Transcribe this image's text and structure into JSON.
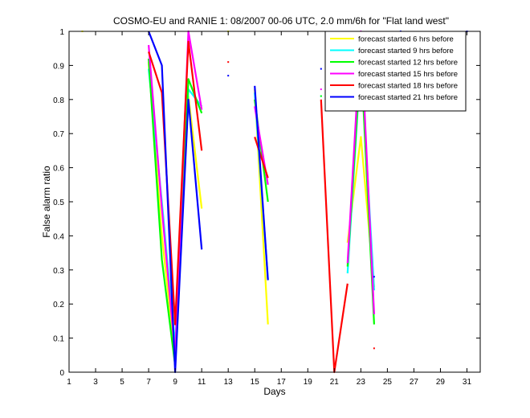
{
  "chart_data": {
    "type": "line",
    "title": "COSMO-EU and RANIE 1: 08/2007 00-06 UTC, 2.0 mm/6h for \"Flat land west\"",
    "xlabel": "Days",
    "ylabel": "False alarm ratio",
    "xlim": [
      1,
      32
    ],
    "ylim": [
      0,
      1
    ],
    "xticks": [
      1,
      3,
      5,
      7,
      9,
      11,
      13,
      15,
      17,
      19,
      21,
      23,
      25,
      27,
      29,
      31
    ],
    "yticks": [
      0,
      0.1,
      0.2,
      0.3,
      0.4,
      0.5,
      0.6,
      0.7,
      0.8,
      0.9,
      1
    ],
    "grid": false,
    "legend_position": "top-right",
    "series": [
      {
        "name": "forecast started 6 hrs before",
        "color": "#ffff00",
        "segments": [
          [
            [
              7,
              0.91
            ],
            [
              8,
              0.4
            ],
            [
              9,
              0.04
            ],
            [
              10,
              0.81
            ],
            [
              11,
              0.48
            ]
          ],
          [
            [
              15,
              0.83
            ],
            [
              16,
              0.14
            ]
          ],
          [
            [
              22,
              0.38
            ],
            [
              23,
              0.69
            ],
            [
              24,
              0.25
            ]
          ]
        ],
        "points": [
          [
            2,
            1.0
          ],
          [
            13,
            1.0
          ],
          [
            27,
            0.98
          ]
        ]
      },
      {
        "name": "forecast started 9 hrs before",
        "color": "#00ffff",
        "segments": [
          [
            [
              7,
              0.89
            ],
            [
              8,
              0.5
            ],
            [
              9,
              0.08
            ],
            [
              10,
              0.83
            ],
            [
              11,
              0.78
            ]
          ],
          [
            [
              15,
              0.82
            ],
            [
              16,
              0.27
            ]
          ],
          [
            [
              22,
              0.29
            ],
            [
              23,
              0.92
            ],
            [
              24,
              0.24
            ]
          ]
        ],
        "points": [
          [
            20,
            0.81
          ]
        ]
      },
      {
        "name": "forecast started 12 hrs before",
        "color": "#00ff00",
        "segments": [
          [
            [
              7,
              0.92
            ],
            [
              8,
              0.33
            ],
            [
              9,
              0.02
            ],
            [
              10,
              0.86
            ],
            [
              11,
              0.76
            ]
          ],
          [
            [
              15,
              0.8
            ],
            [
              16,
              0.5
            ]
          ],
          [
            [
              22,
              0.31
            ],
            [
              23,
              0.93
            ],
            [
              24,
              0.14
            ]
          ]
        ],
        "points": [
          [
            20,
            0.81
          ]
        ]
      },
      {
        "name": "forecast started 15 hrs before",
        "color": "#ff00ff",
        "segments": [
          [
            [
              7,
              0.96
            ],
            [
              8,
              0.48
            ],
            [
              9,
              0.05
            ],
            [
              10,
              1.0
            ],
            [
              11,
              0.77
            ]
          ],
          [
            [
              15,
              0.78
            ],
            [
              16,
              0.55
            ]
          ],
          [
            [
              22,
              0.32
            ],
            [
              23,
              1.0
            ],
            [
              24,
              0.17
            ]
          ]
        ],
        "points": [
          [
            20,
            0.83
          ]
        ]
      },
      {
        "name": "forecast started 18 hrs before",
        "color": "#ff0000",
        "segments": [
          [
            [
              7,
              0.94
            ],
            [
              8,
              0.82
            ],
            [
              9,
              0.14
            ],
            [
              10,
              0.97
            ],
            [
              11,
              0.65
            ]
          ],
          [
            [
              15,
              0.69
            ],
            [
              16,
              0.57
            ]
          ],
          [
            [
              20,
              0.8
            ],
            [
              21,
              0.0
            ],
            [
              22,
              0.26
            ]
          ]
        ],
        "points": [
          [
            13,
            0.91
          ],
          [
            24,
            0.07
          ]
        ]
      },
      {
        "name": "forecast started 21 hrs before",
        "color": "#0000ff",
        "segments": [
          [
            [
              7,
              1.0
            ],
            [
              8,
              0.9
            ],
            [
              9,
              0.0
            ],
            [
              10,
              0.8
            ],
            [
              11,
              0.36
            ]
          ],
          [
            [
              15,
              0.84
            ],
            [
              16,
              0.27
            ]
          ]
        ],
        "points": [
          [
            13,
            0.87
          ],
          [
            20,
            0.89
          ],
          [
            26,
            1.0
          ],
          [
            31,
            1.0
          ],
          [
            24,
            0.28
          ]
        ]
      }
    ]
  }
}
